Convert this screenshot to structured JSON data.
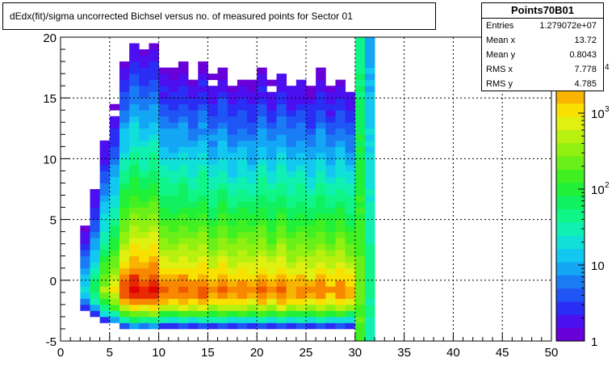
{
  "title": "dEdx(fit)/sigma uncorrected Bichsel versus no. of measured points for Sector 01",
  "stats": {
    "name": "Points70B01",
    "rows": [
      {
        "label": "Entries",
        "value": "1.279072e+07"
      },
      {
        "label": "Mean x",
        "value": "13.72"
      },
      {
        "label": "Mean y",
        "value": "0.8043"
      },
      {
        "label": "RMS x",
        "value": "7.778"
      },
      {
        "label": "RMS y",
        "value": "4.785"
      }
    ]
  },
  "chart_data": {
    "type": "heatmap",
    "title": "dEdx(fit)/sigma uncorrected Bichsel versus no. of measured points for Sector 01",
    "xlabel": "",
    "ylabel": "",
    "xlim": [
      0,
      50
    ],
    "ylim": [
      -5,
      20
    ],
    "x_ticks": [
      "0",
      "5",
      "10",
      "15",
      "20",
      "25",
      "30",
      "35",
      "40",
      "45",
      "50"
    ],
    "y_ticks": [
      "-5",
      "0",
      "5",
      "10",
      "15",
      "20"
    ],
    "z_scale": "log",
    "z_range": [
      1,
      10000
    ],
    "z_ticks": [
      {
        "base": "1",
        "exp": ""
      },
      {
        "base": "10",
        "exp": ""
      },
      {
        "base": "10",
        "exp": "2"
      },
      {
        "base": "10",
        "exp": "3"
      },
      {
        "base": "10",
        "exp": "4"
      }
    ],
    "grid": true,
    "x_bin_width": 1,
    "x_filled_range": [
      2,
      32
    ],
    "y_bin_width": 0.5,
    "description_of_values": "log10(counts) per (x bin, y bin); densest near y in [-2.5, 1] for x in [6, 9]",
    "column_peak_log10": [
      {
        "x": 2,
        "peak": 1.3
      },
      {
        "x": 3,
        "peak": 1.9
      },
      {
        "x": 4,
        "peak": 2.6
      },
      {
        "x": 5,
        "peak": 3.0
      },
      {
        "x": 6,
        "peak": 3.7
      },
      {
        "x": 7,
        "peak": 3.95
      },
      {
        "x": 8,
        "peak": 3.8
      },
      {
        "x": 9,
        "peak": 3.9
      },
      {
        "x": 10,
        "peak": 3.55
      },
      {
        "x": 11,
        "peak": 3.5
      },
      {
        "x": 12,
        "peak": 3.6
      },
      {
        "x": 13,
        "peak": 3.45
      },
      {
        "x": 14,
        "peak": 3.6
      },
      {
        "x": 15,
        "peak": 3.4
      },
      {
        "x": 16,
        "peak": 3.55
      },
      {
        "x": 17,
        "peak": 3.35
      },
      {
        "x": 18,
        "peak": 3.45
      },
      {
        "x": 19,
        "peak": 3.35
      },
      {
        "x": 20,
        "peak": 3.55
      },
      {
        "x": 21,
        "peak": 3.35
      },
      {
        "x": 22,
        "peak": 3.55
      },
      {
        "x": 23,
        "peak": 3.35
      },
      {
        "x": 24,
        "peak": 3.45
      },
      {
        "x": 25,
        "peak": 3.3
      },
      {
        "x": 26,
        "peak": 3.5
      },
      {
        "x": 27,
        "peak": 3.3
      },
      {
        "x": 28,
        "peak": 3.45
      },
      {
        "x": 29,
        "peak": 3.3
      },
      {
        "x": 30,
        "peak": 2.3
      },
      {
        "x": 31,
        "peak": 1.6
      }
    ]
  }
}
